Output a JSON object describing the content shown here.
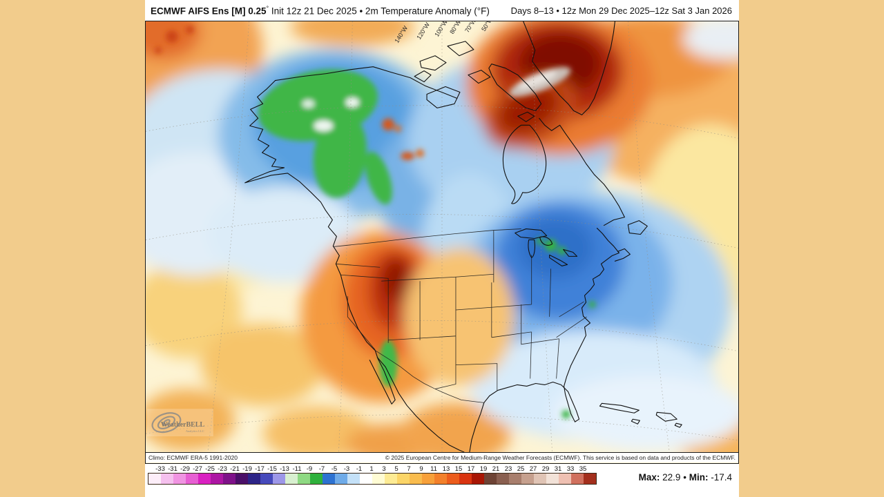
{
  "page": {
    "background": "#f2cc8c"
  },
  "header": {
    "title_bold": "ECMWF AIFS Ens [M] 0.25",
    "title_degree": "°",
    "title_rest": " Init 12z 21 Dec 2025 • 2m Temperature Anomaly (°F)",
    "right": "Days 8–13 • 12z Mon 29 Dec 2025–12z Sat 3 Jan 2026"
  },
  "map": {
    "meridian_labels": [
      "140°W",
      "120°W",
      "100°W",
      "80°W",
      "70°W",
      "50°W"
    ],
    "logo": {
      "name": "WeatherBELL",
      "sub": "Analytics LLC"
    },
    "attribution_left": "Climo: ECMWF ERA-5 1991-2020",
    "attribution_right": "© 2025 European Centre for Medium-Range Weather Forecasts (ECMWF). This service is based on data and products of the ECMWF."
  },
  "colorbar": {
    "tick_labels": [
      "-33",
      "-31",
      "-29",
      "-27",
      "-25",
      "-23",
      "-21",
      "-19",
      "-17",
      "-15",
      "-13",
      "-11",
      "-9",
      "-7",
      "-5",
      "-3",
      "-1",
      "1",
      "3",
      "5",
      "7",
      "9",
      "11",
      "13",
      "15",
      "17",
      "19",
      "21",
      "23",
      "25",
      "27",
      "29",
      "31",
      "33",
      "35"
    ],
    "segment_colors": [
      "#fdeef9",
      "#f5c0ee",
      "#f094e2",
      "#e75fd3",
      "#d920c1",
      "#ac15a3",
      "#7e1189",
      "#4a0f68",
      "#2d2487",
      "#4649bb",
      "#9d97e8",
      "#d8f0d0",
      "#8ed983",
      "#2fb13c",
      "#2d72d1",
      "#6fabe8",
      "#c4e1f8",
      "#ffffff",
      "#fffcd4",
      "#fdeb94",
      "#fbd568",
      "#f9bc4e",
      "#f7a03a",
      "#f3802b",
      "#ec5c1c",
      "#d93410",
      "#a81604",
      "#6e4335",
      "#8a5f50",
      "#a87e6d",
      "#c6a08e",
      "#e0c4b5",
      "#f2e2d8",
      "#efc0b2",
      "#d0705e",
      "#a32f1d"
    ]
  },
  "stats": {
    "max_label": "Max:",
    "max_value": "22.9",
    "separator": "•",
    "min_label": "Min:",
    "min_value": "-17.4"
  },
  "chart_data": {
    "type": "heatmap",
    "variable": "2m Temperature Anomaly (°F)",
    "model": "ECMWF AIFS Ens [M] 0.25°",
    "init": "12z 21 Dec 2025",
    "valid": "Days 8–13 • 12z Mon 29 Dec 2025–12z Sat 3 Jan 2026",
    "climatology": "ECMWF ERA-5 1991-2020",
    "scale_range": [
      -33,
      35
    ],
    "scale_step": 2,
    "max": 22.9,
    "min": -17.4,
    "regions": [
      {
        "area": "Greenland / Baffin Island",
        "anomaly": "+13 to +23 (dark red, ice-sheet core near max)"
      },
      {
        "area": "Interior Alaska / Yukon",
        "anomaly": "-9 to -13 (green cores within blue)"
      },
      {
        "area": "Western US (UT/CO/WY Four Corners core)",
        "anomaly": "+7 to +13 (orange with dark red core)"
      },
      {
        "area": "Eastern US / Quebec / New England",
        "anomaly": "-3 to -11 (blue pool with green specks)"
      },
      {
        "area": "Central Canada / Prairies",
        "anomaly": "-3 to -7 (blue)"
      },
      {
        "area": "North Atlantic",
        "anomaly": "+1 to +7 (yellow-orange)"
      },
      {
        "area": "Gulf of Mexico / Southeast coast",
        "anomaly": "-1 to -3 (pale blue)"
      }
    ]
  }
}
